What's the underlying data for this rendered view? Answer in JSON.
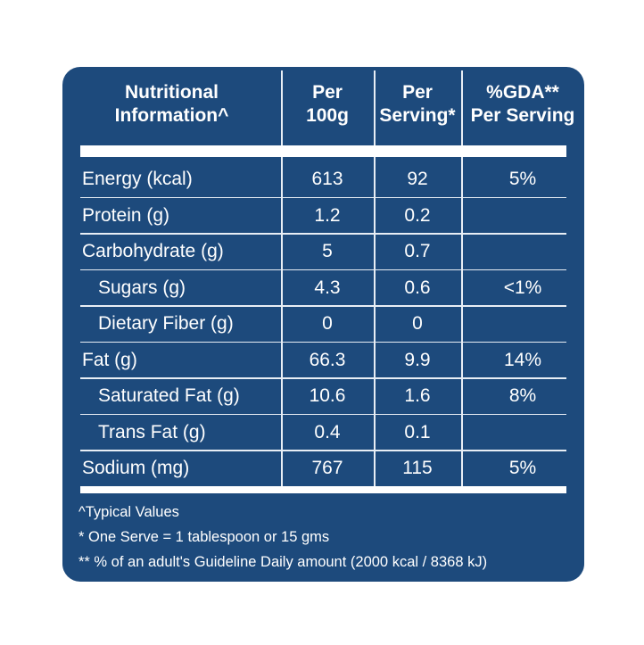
{
  "table": {
    "header": [
      [
        "Nutritional",
        "Information^"
      ],
      [
        "Per",
        "100g"
      ],
      [
        "Per",
        "Serving*"
      ],
      [
        "%GDA**",
        "Per Serving"
      ]
    ],
    "rows": [
      [
        "Energy (kcal)",
        613,
        92,
        "5%"
      ],
      [
        "Protein (g)",
        1.2,
        0.2,
        null
      ],
      [
        "Carbohydrate (g)",
        5,
        0.7,
        null
      ],
      [
        "Sugars (g)",
        4.3,
        0.6,
        "<1%"
      ],
      [
        "Dietary Fiber (g)",
        0,
        0,
        null
      ],
      [
        "Fat (g)",
        66.3,
        9.9,
        "14%"
      ],
      [
        "Saturated Fat (g)",
        10.6,
        1.6,
        "8%"
      ],
      [
        "Trans Fat (g)",
        0.4,
        0.1,
        null
      ],
      [
        "Sodium (mg)",
        767,
        115,
        "5%"
      ]
    ]
  },
  "footnotes": [
    "^Typical Values",
    "* One Serve = 1 tablespoon or 15 gms",
    "** % of an adult's Guideline Daily amount (2000 kcal / 8368 kJ)"
  ]
}
